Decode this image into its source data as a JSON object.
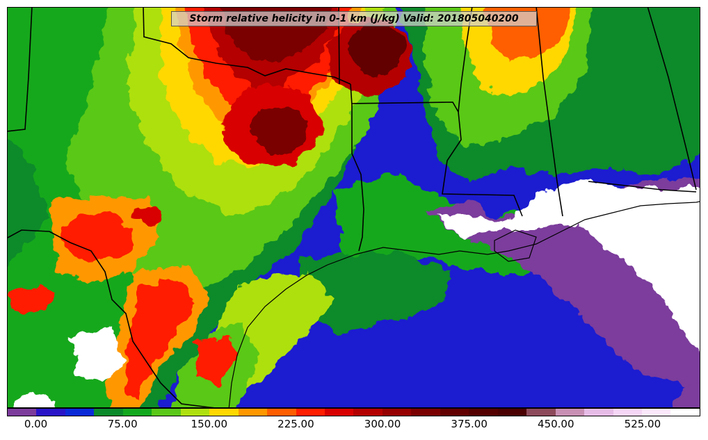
{
  "title": "Storm relative helicity in 0-1 km (J/kg) Valid: 201805040200",
  "colorbar": {
    "colors": [
      "#7c3c9c",
      "#2a14c8",
      "#0a2ad8",
      "#0a8a2a",
      "#12a81e",
      "#5ac818",
      "#aee010",
      "#ffd800",
      "#ff9800",
      "#ff5e00",
      "#ff1e00",
      "#d80000",
      "#b40000",
      "#960000",
      "#7a0000",
      "#620000",
      "#540000",
      "#4a0000",
      "#8c4a5a",
      "#c890b4",
      "#e6bce6",
      "#f6d6f6",
      "#fbe8fb",
      "#ffffff"
    ],
    "tick_labels": [
      "0.00",
      "75.00",
      "150.00",
      "225.00",
      "300.00",
      "375.00",
      "450.00",
      "525.00"
    ],
    "tick_values": [
      0,
      75,
      150,
      225,
      300,
      375,
      450,
      525
    ]
  }
}
